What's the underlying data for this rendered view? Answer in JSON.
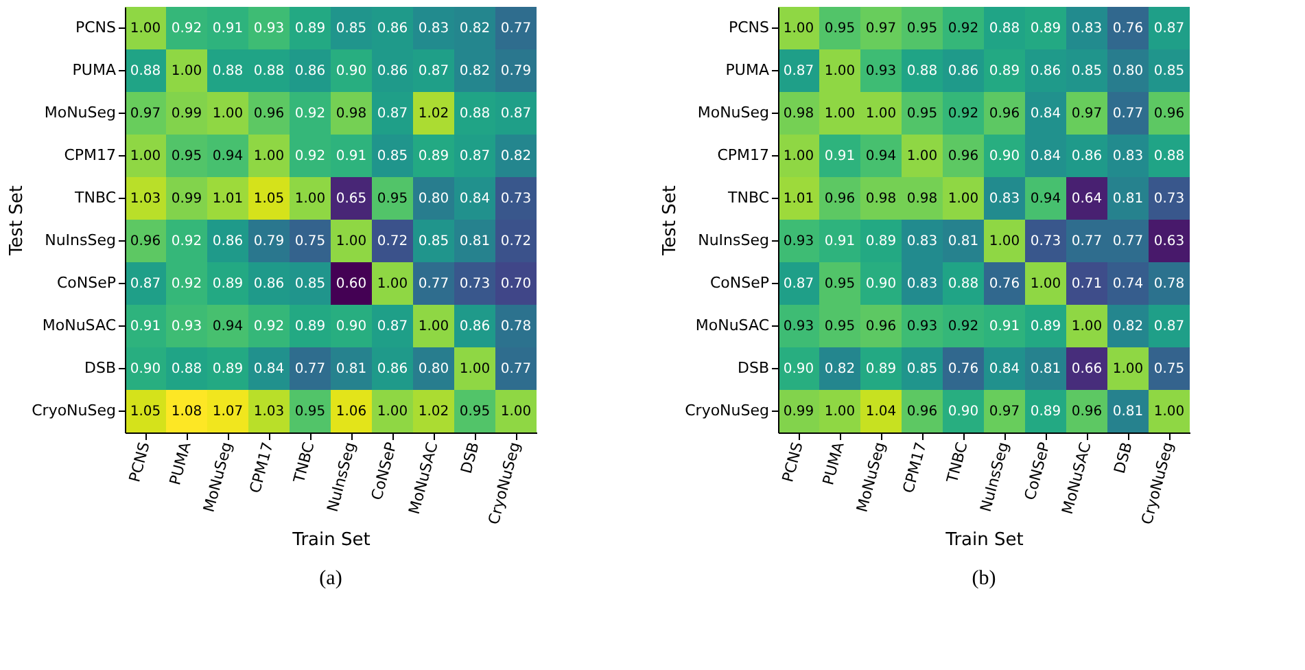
{
  "chart_data": [
    {
      "type": "heatmap",
      "xlabel": "Train Set",
      "ylabel": "Test Set",
      "annotations": [
        "(a)"
      ],
      "categories": [
        "PCNS",
        "PUMA",
        "MoNuSeg",
        "CPM17",
        "TNBC",
        "NuInsSeg",
        "CoNSeP",
        "MoNuSAC",
        "DSB",
        "CryoNuSeg"
      ],
      "y_categories": [
        "PCNS",
        "PUMA",
        "MoNuSeg",
        "CPM17",
        "TNBC",
        "NuInsSeg",
        "CoNSeP",
        "MoNuSAC",
        "DSB",
        "CryoNuSeg"
      ],
      "cells": [
        [
          1.0,
          0.92,
          0.91,
          0.93,
          0.89,
          0.85,
          0.86,
          0.83,
          0.82,
          0.77
        ],
        [
          0.88,
          1.0,
          0.88,
          0.88,
          0.86,
          0.9,
          0.86,
          0.87,
          0.82,
          0.79
        ],
        [
          0.97,
          0.99,
          1.0,
          0.96,
          0.92,
          0.98,
          0.87,
          1.02,
          0.88,
          0.87
        ],
        [
          1.0,
          0.95,
          0.94,
          1.0,
          0.92,
          0.91,
          0.85,
          0.89,
          0.87,
          0.82
        ],
        [
          1.03,
          0.99,
          1.01,
          1.05,
          1.0,
          0.65,
          0.95,
          0.8,
          0.84,
          0.73
        ],
        [
          0.96,
          0.92,
          0.86,
          0.79,
          0.75,
          1.0,
          0.72,
          0.85,
          0.81,
          0.72
        ],
        [
          0.87,
          0.92,
          0.89,
          0.86,
          0.85,
          0.6,
          1.0,
          0.77,
          0.73,
          0.7
        ],
        [
          0.91,
          0.93,
          0.94,
          0.92,
          0.89,
          0.9,
          0.87,
          1.0,
          0.86,
          0.78
        ],
        [
          0.9,
          0.88,
          0.89,
          0.84,
          0.77,
          0.81,
          0.86,
          0.8,
          1.0,
          0.77
        ],
        [
          1.05,
          1.08,
          1.07,
          1.03,
          0.95,
          1.06,
          1.0,
          1.02,
          0.95,
          1.0
        ]
      ],
      "cell_labels": [
        [
          "1.00",
          "0.92",
          "0.91",
          "0.93",
          "0.89",
          "0.85",
          "0.86",
          "0.83",
          "0.82",
          "0.77"
        ],
        [
          "0.88",
          "1.00",
          "0.88",
          "0.88",
          "0.86",
          "0.90",
          "0.86",
          "0.87",
          "0.82",
          "0.79"
        ],
        [
          "0.97",
          "0.99",
          "1.00",
          "0.96",
          "0.92",
          "0.98",
          "0.87",
          "1.02",
          "0.88",
          "0.87"
        ],
        [
          "1.00",
          "0.95",
          "0.94",
          "1.00",
          "0.92",
          "0.91",
          "0.85",
          "0.89",
          "0.87",
          "0.82"
        ],
        [
          "1.03",
          "0.99",
          "1.01",
          "1.05",
          "1.00",
          "0.65",
          "0.95",
          "0.80",
          "0.84",
          "0.73"
        ],
        [
          "0.96",
          "0.92",
          "0.86",
          "0.79",
          "0.75",
          "1.00",
          "0.72",
          "0.85",
          "0.81",
          "0.72"
        ],
        [
          "0.87",
          "0.92",
          "0.89",
          "0.86",
          "0.85",
          "0.60",
          "1.00",
          "0.77",
          "0.73",
          "0.70"
        ],
        [
          "0.91",
          "0.93",
          "0.94",
          "0.92",
          "0.89",
          "0.90",
          "0.87",
          "1.00",
          "0.86",
          "0.78"
        ],
        [
          "0.90",
          "0.88",
          "0.89",
          "0.84",
          "0.77",
          "0.81",
          "0.86",
          "0.80",
          "1.00",
          "0.77"
        ],
        [
          "1.05",
          "1.08",
          "1.07",
          "1.03",
          "0.95",
          "1.06",
          "1.00",
          "1.02",
          "0.95",
          "1.00"
        ]
      ]
    },
    {
      "type": "heatmap",
      "xlabel": "Train Set",
      "ylabel": "Test Set",
      "annotations": [
        "(b)"
      ],
      "categories": [
        "PCNS",
        "PUMA",
        "MoNuSeg",
        "CPM17",
        "TNBC",
        "NuInsSeg",
        "CoNSeP",
        "MoNuSAC",
        "DSB",
        "CryoNuSeg"
      ],
      "y_categories": [
        "PCNS",
        "PUMA",
        "MoNuSeg",
        "CPM17",
        "TNBC",
        "NuInsSeg",
        "CoNSeP",
        "MoNuSAC",
        "DSB",
        "CryoNuSeg"
      ],
      "cells": [
        [
          1.0,
          0.95,
          0.97,
          0.95,
          0.92,
          0.88,
          0.89,
          0.83,
          0.76,
          0.87
        ],
        [
          0.87,
          1.0,
          0.93,
          0.88,
          0.86,
          0.89,
          0.86,
          0.85,
          0.8,
          0.85
        ],
        [
          0.98,
          1.0,
          1.0,
          0.95,
          0.92,
          0.96,
          0.84,
          0.97,
          0.77,
          0.96
        ],
        [
          1.0,
          0.91,
          0.94,
          1.0,
          0.96,
          0.9,
          0.84,
          0.86,
          0.83,
          0.88
        ],
        [
          1.01,
          0.96,
          0.98,
          0.98,
          1.0,
          0.83,
          0.94,
          0.64,
          0.81,
          0.73
        ],
        [
          0.93,
          0.91,
          0.89,
          0.83,
          0.81,
          1.0,
          0.73,
          0.77,
          0.77,
          0.63
        ],
        [
          0.87,
          0.95,
          0.9,
          0.83,
          0.88,
          0.76,
          1.0,
          0.71,
          0.74,
          0.78
        ],
        [
          0.93,
          0.95,
          0.96,
          0.93,
          0.92,
          0.91,
          0.89,
          1.0,
          0.82,
          0.87
        ],
        [
          0.9,
          0.82,
          0.89,
          0.85,
          0.76,
          0.84,
          0.81,
          0.66,
          1.0,
          0.75
        ],
        [
          0.99,
          1.0,
          1.04,
          0.96,
          0.9,
          0.97,
          0.89,
          0.96,
          0.81,
          1.0
        ]
      ],
      "cell_labels": [
        [
          "1.00",
          "0.95",
          "0.97",
          "0.95",
          "0.92",
          "0.88",
          "0.89",
          "0.83",
          "0.76",
          "0.87"
        ],
        [
          "0.87",
          "1.00",
          "0.93",
          "0.88",
          "0.86",
          "0.89",
          "0.86",
          "0.85",
          "0.80",
          "0.85"
        ],
        [
          "0.98",
          "1.00",
          "1.00",
          "0.95",
          "0.92",
          "0.96",
          "0.84",
          "0.97",
          "0.77",
          "0.96"
        ],
        [
          "1.00",
          "0.91",
          "0.94",
          "1.00",
          "0.96",
          "0.90",
          "0.84",
          "0.86",
          "0.83",
          "0.88"
        ],
        [
          "1.01",
          "0.96",
          "0.98",
          "0.98",
          "1.00",
          "0.83",
          "0.94",
          "0.64",
          "0.81",
          "0.73"
        ],
        [
          "0.93",
          "0.91",
          "0.89",
          "0.83",
          "0.81",
          "1.00",
          "0.73",
          "0.77",
          "0.77",
          "0.63"
        ],
        [
          "0.87",
          "0.95",
          "0.90",
          "0.83",
          "0.88",
          "0.76",
          "1.00",
          "0.71",
          "0.74",
          "0.78"
        ],
        [
          "0.93",
          "0.95",
          "0.96",
          "0.93",
          "0.92",
          "0.91",
          "0.89",
          "1.00",
          "0.82",
          "0.87"
        ],
        [
          "0.90",
          "0.82",
          "0.89",
          "0.85",
          "0.76",
          "0.84",
          "0.81",
          "0.66",
          "1.00",
          "0.75"
        ],
        [
          "0.99",
          "1.00",
          "1.04",
          "0.96",
          "0.90",
          "0.97",
          "0.89",
          "0.96",
          "0.81",
          "1.00"
        ]
      ]
    }
  ]
}
